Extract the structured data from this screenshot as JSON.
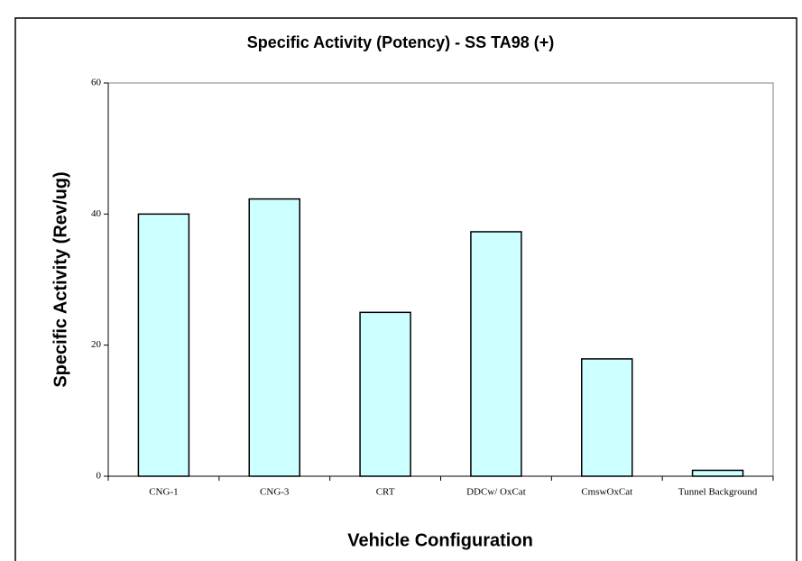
{
  "chart_data": {
    "type": "bar",
    "title": "Specific Activity (Potency) - SS TA98 (+)",
    "x_label": "Vehicle Configuration",
    "y_label": "Specific Activity (Rev/ug)",
    "categories": [
      "CNG-1",
      "CNG-3",
      "CRT",
      "DDCw/ OxCat",
      "CmswOxCat",
      "Tunnel Background"
    ],
    "values": [
      40,
      42.3,
      25,
      37.3,
      17.9,
      0.9
    ],
    "color": "#ccffff",
    "ylim": [
      0,
      60
    ],
    "yticks": [
      0,
      20,
      40,
      60
    ],
    "grid": false
  }
}
